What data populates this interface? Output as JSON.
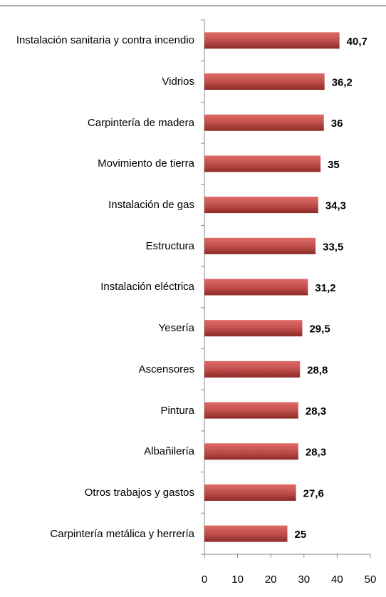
{
  "chart_data": {
    "type": "bar",
    "orientation": "horizontal",
    "categories": [
      "Instalación sanitaria y contra incendio",
      "Vidrios",
      "Carpintería de madera",
      "Movimiento de tierra",
      "Instalación de gas",
      "Estructura",
      "Instalación eléctrica",
      "Yesería",
      "Ascensores",
      "Pintura",
      "Albañilería",
      "Otros trabajos y gastos",
      "Carpintería metálica y herrería"
    ],
    "values": [
      40.7,
      36.2,
      36,
      35,
      34.3,
      33.5,
      31.2,
      29.5,
      28.8,
      28.3,
      28.3,
      27.6,
      25
    ],
    "value_labels": [
      "40,7",
      "36,2",
      "36",
      "35",
      "34,3",
      "33,5",
      "31,2",
      "29,5",
      "28,8",
      "28,3",
      "28,3",
      "27,6",
      "25"
    ],
    "color": "#c0504d",
    "xlim": [
      0,
      50
    ],
    "xticks": [
      0,
      10,
      20,
      30,
      40,
      50
    ]
  }
}
